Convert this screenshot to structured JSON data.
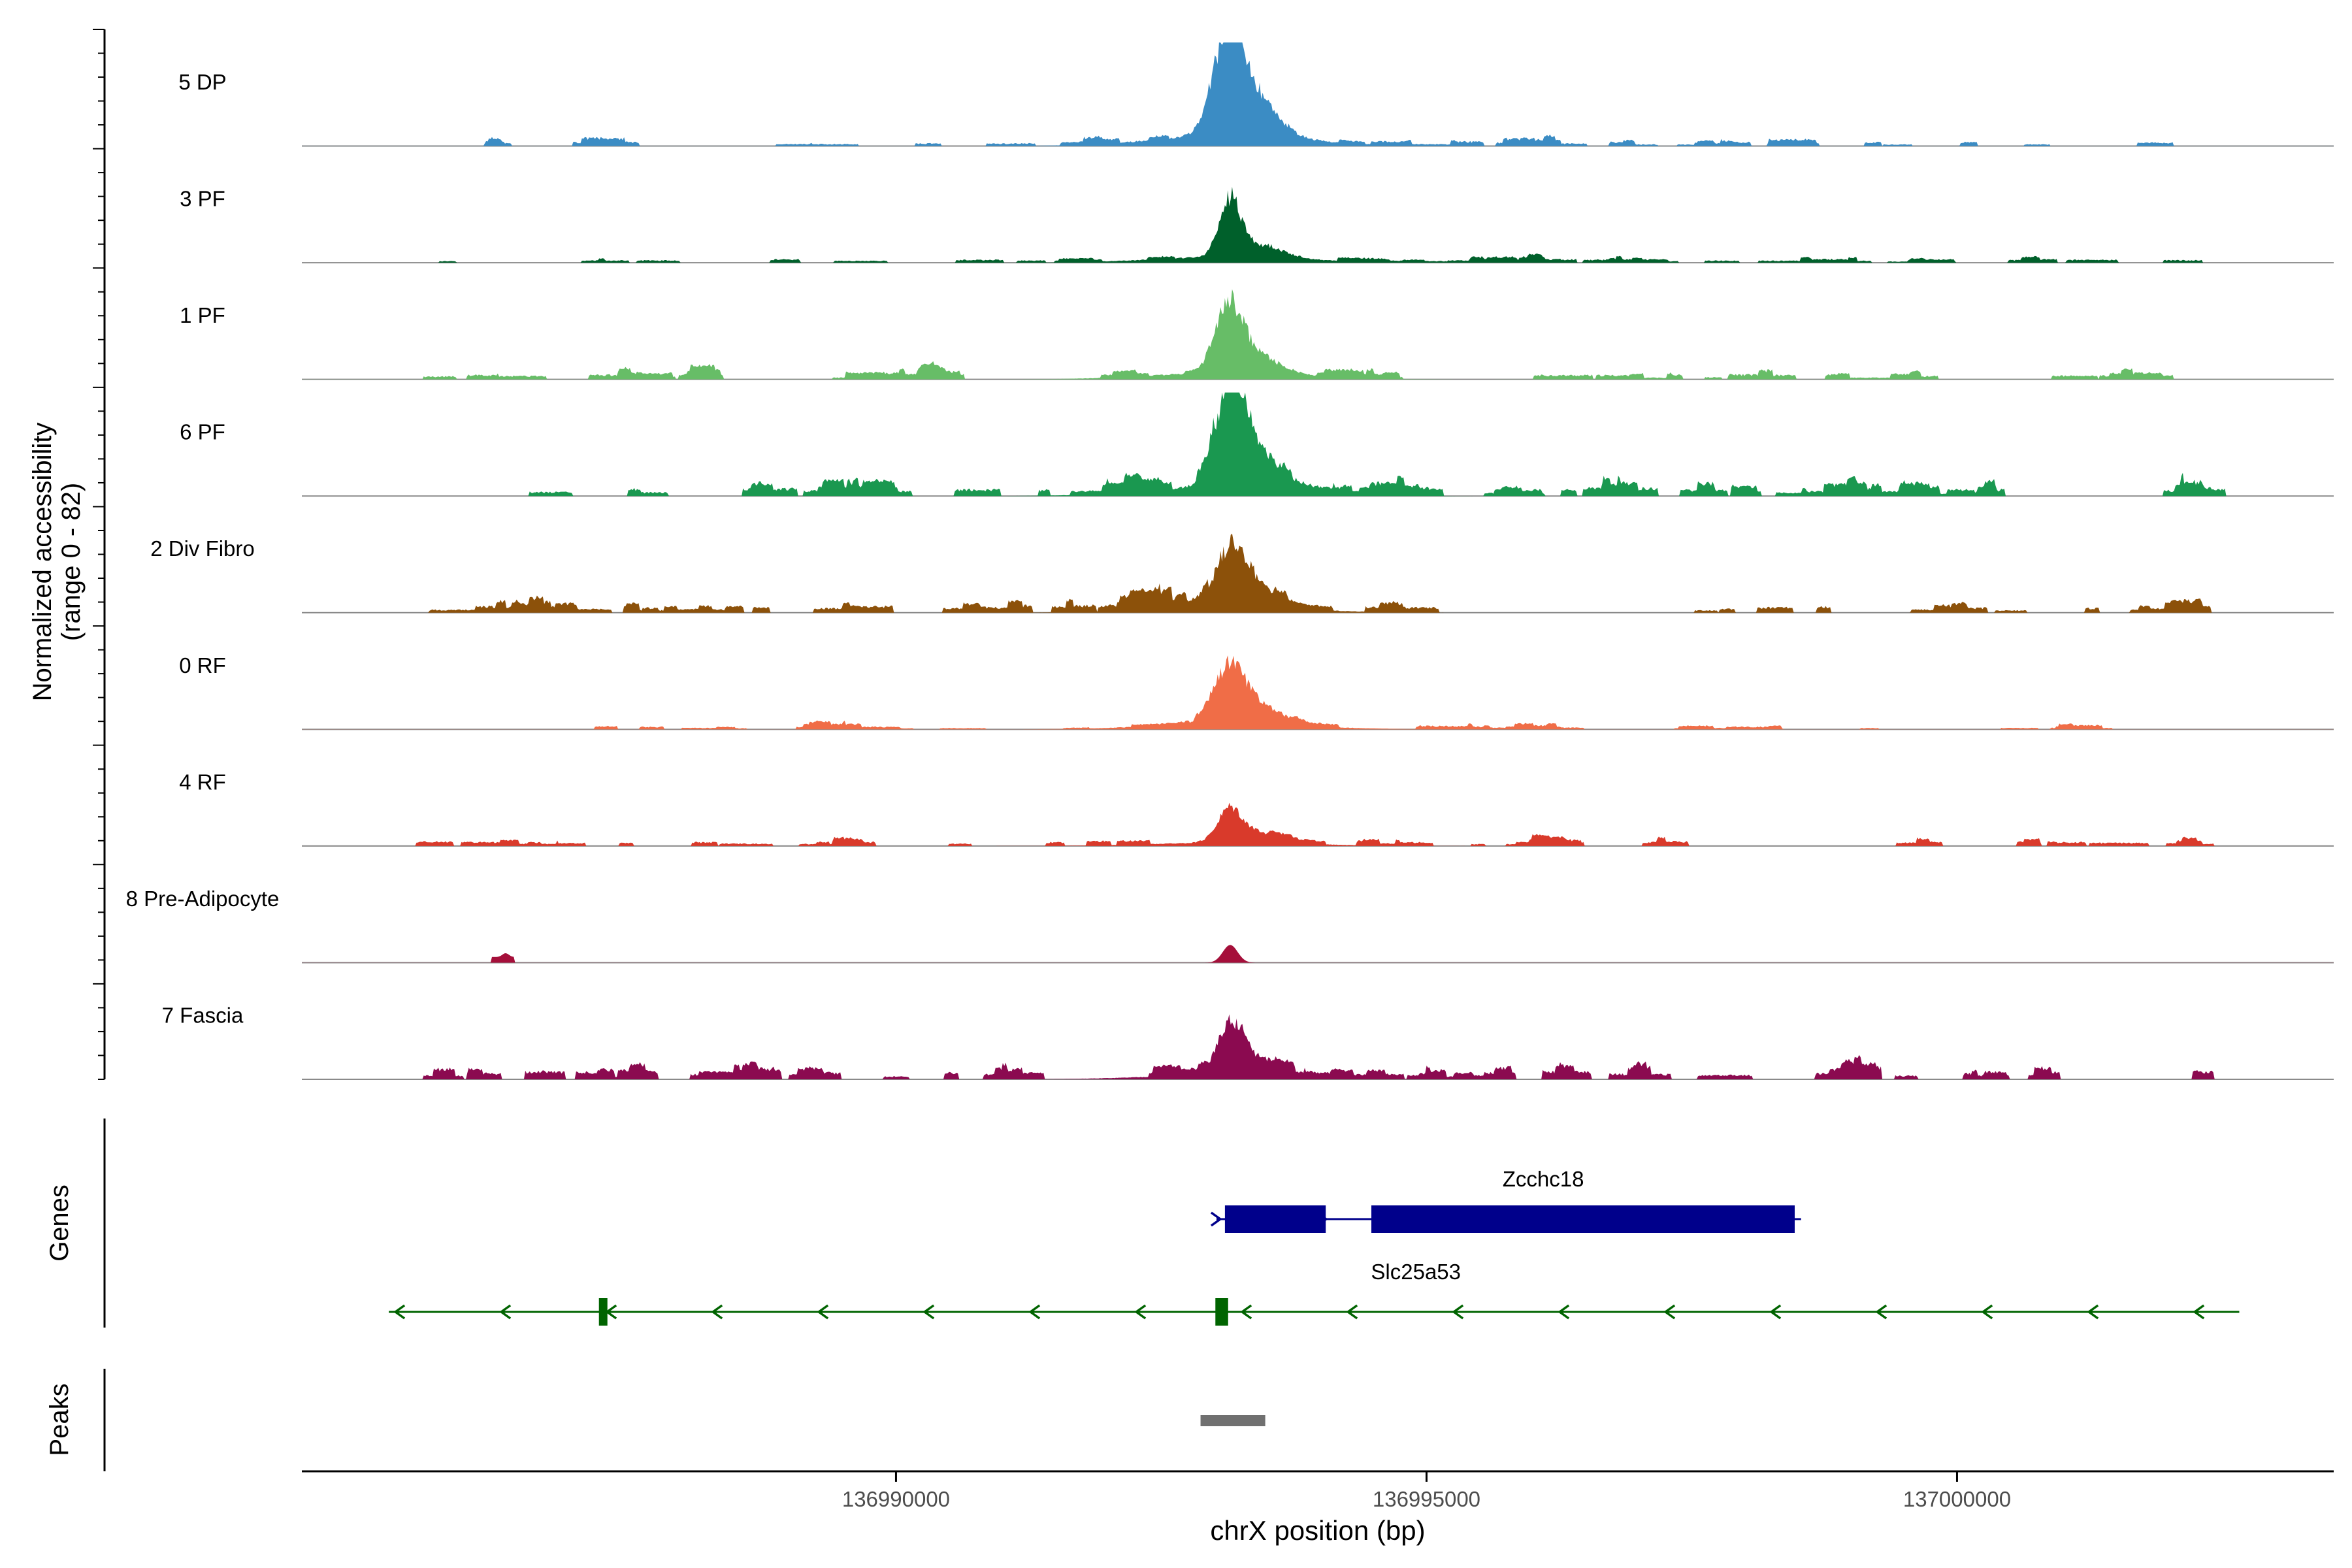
{
  "chart_data": {
    "type": "area",
    "ylabel_line1": "Normalized accessibility",
    "ylabel_line2": "(range 0 - 82)",
    "ylim": [
      0,
      82
    ],
    "xlabel": "chrX position (bp)",
    "xlim": [
      136984400,
      137003550
    ],
    "xticks": [
      {
        "value": 136990000,
        "label": "136990000"
      },
      {
        "value": 136995000,
        "label": "136995000"
      },
      {
        "value": 137000000,
        "label": "137000000"
      }
    ],
    "tracks": [
      {
        "name": "5 DP",
        "color": "#3B8CC4",
        "peak": 82,
        "sharpness": 1.0,
        "noise": 3.2,
        "seed": 11
      },
      {
        "name": "3 PF",
        "color": "#00602B",
        "peak": 45,
        "sharpness": 1.5,
        "noise": 2.6,
        "seed": 23
      },
      {
        "name": "1 PF",
        "color": "#67BD67",
        "peak": 52,
        "sharpness": 1.2,
        "noise": 3.8,
        "seed": 37
      },
      {
        "name": "6 PF",
        "color": "#1A9850",
        "peak": 78,
        "sharpness": 1.1,
        "noise": 6.0,
        "seed": 41
      },
      {
        "name": "2 Div Fibro",
        "color": "#8C510A",
        "peak": 42,
        "sharpness": 1.0,
        "noise": 5.0,
        "seed": 53
      },
      {
        "name": "0 RF",
        "color": "#F06D47",
        "peak": 45,
        "sharpness": 1.0,
        "noise": 2.4,
        "seed": 67
      },
      {
        "name": "4 RF",
        "color": "#D93A2B",
        "peak": 27,
        "sharpness": 1.3,
        "noise": 3.4,
        "seed": 71
      },
      {
        "name": "8 Pre-Adipocyte",
        "color": "#A50F3A",
        "peak": 14,
        "sharpness": 0.6,
        "noise": 0.0,
        "seed": 83
      },
      {
        "name": "7 Fascia",
        "color": "#8B0A50",
        "peak": 37,
        "sharpness": 1.4,
        "noise": 5.8,
        "seed": 97
      }
    ],
    "genes_label": "Genes",
    "genes": [
      {
        "name": "Zcchc18",
        "color": "#00008B",
        "strand": "+",
        "start": 136993020,
        "end": 136998530,
        "exons": [
          [
            136993100,
            136994050
          ],
          [
            136994480,
            136998470
          ]
        ]
      },
      {
        "name": "Slc25a53",
        "color": "#006400",
        "strand": "-",
        "start": 136985220,
        "end": 137002660,
        "exons": [
          [
            136987200,
            136987280
          ],
          [
            136993010,
            136993130
          ]
        ]
      }
    ],
    "peaks_label": "Peaks",
    "peaks": [
      {
        "start": 136992870,
        "end": 136993480,
        "color": "#707070"
      }
    ]
  }
}
